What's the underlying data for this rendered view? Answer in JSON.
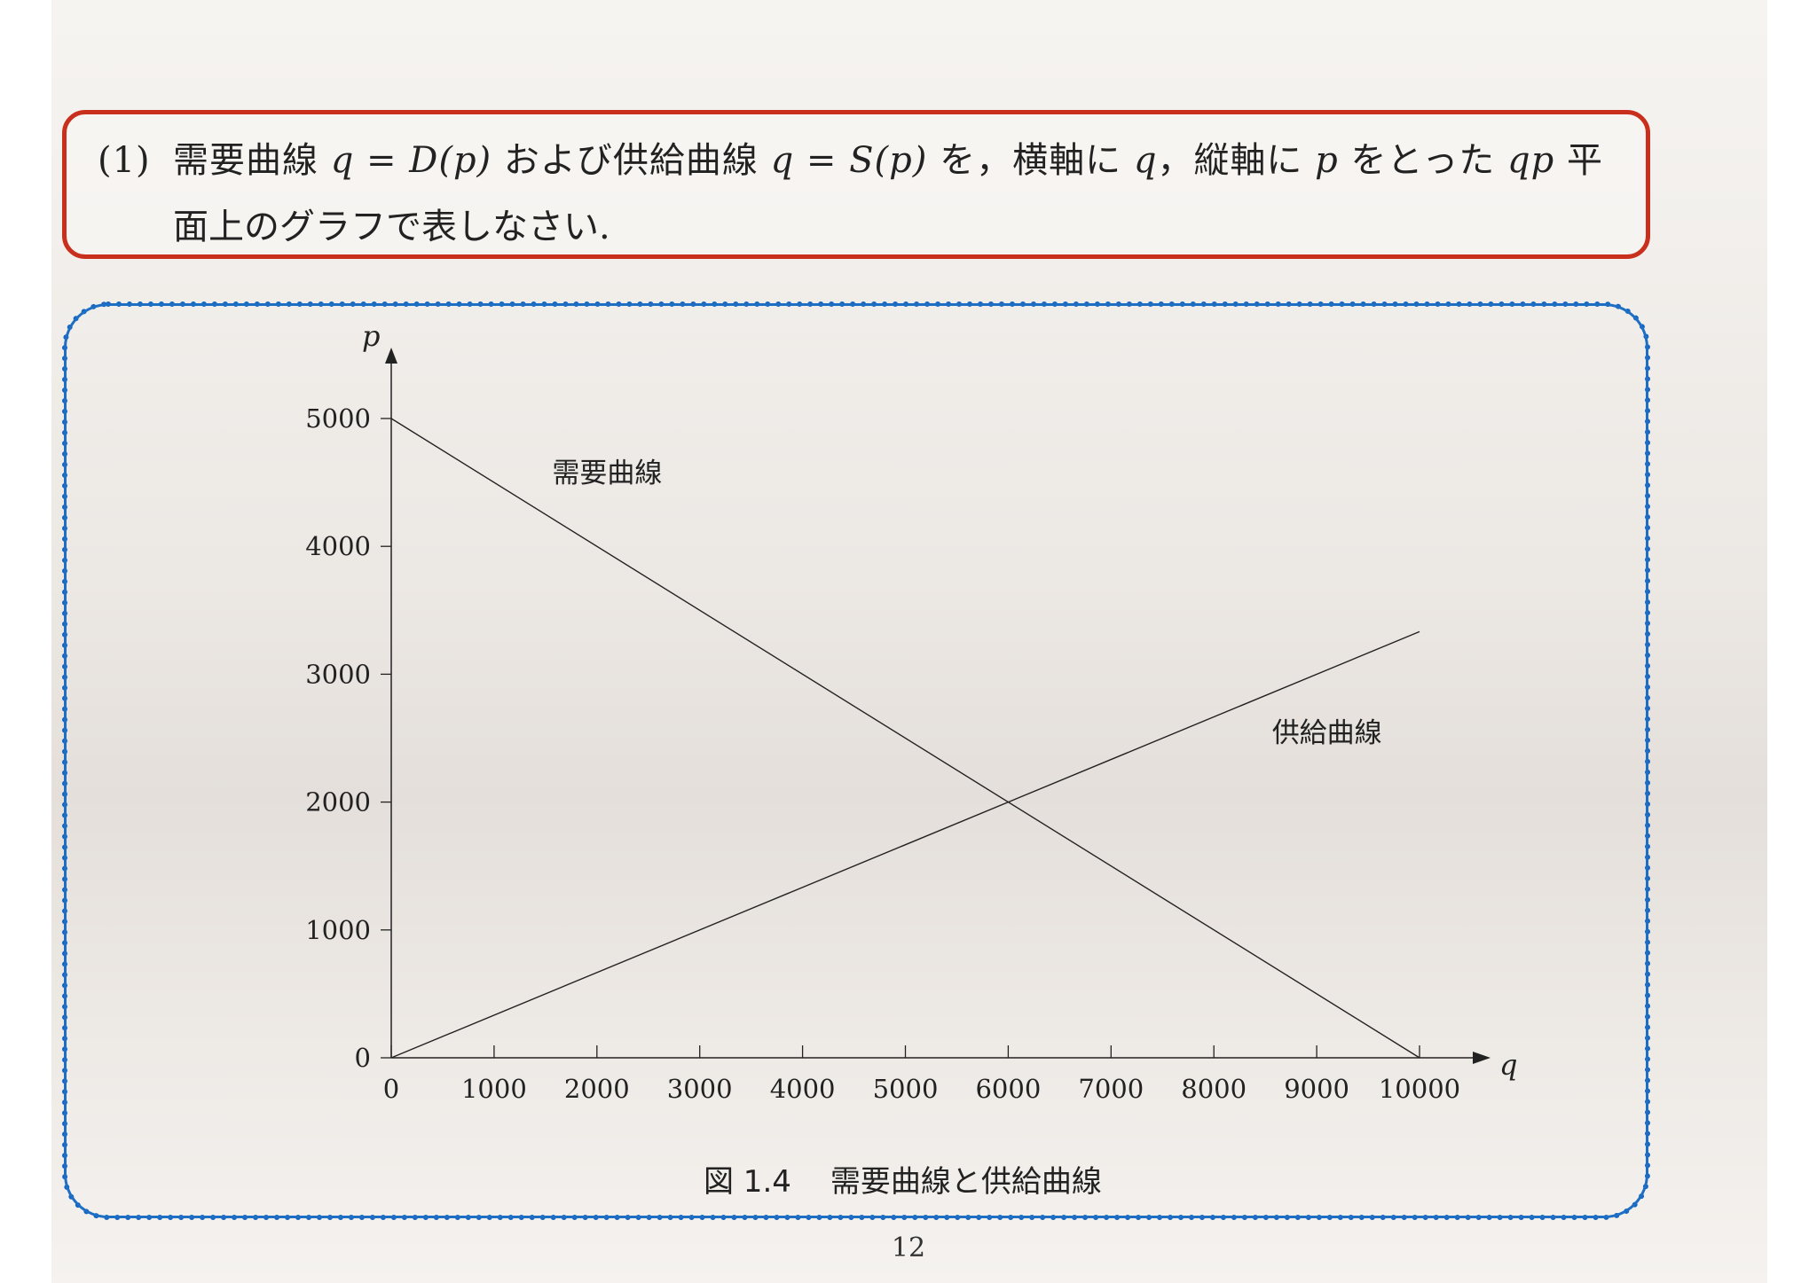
{
  "question": {
    "number": "(1)",
    "line1_text": "需要曲線",
    "line1_math1": "q = D(p)",
    "line1_mid": "および供給曲線",
    "line1_math2": "q = S(p)",
    "line1_mid2": "を，横軸に",
    "line1_math3": "q",
    "line1_mid3": "，縦軸に",
    "line1_math4": "p",
    "line1_mid4": "をとった",
    "line1_math5": "qp",
    "line1_end": "平",
    "line2": "面上のグラフで表しなさい."
  },
  "figure": {
    "number": "図 1.4",
    "title": "需要曲線と供給曲線"
  },
  "page_number": "12",
  "colors": {
    "question_border": "#c8301d",
    "chart_border": "#1565c0",
    "line": "#222222"
  },
  "chart_data": {
    "type": "line",
    "xlabel": "q",
    "ylabel": "p",
    "xlim": [
      0,
      10000
    ],
    "ylim": [
      0,
      5000
    ],
    "x_ticks": [
      "0",
      "1000",
      "2000",
      "3000",
      "4000",
      "5000",
      "6000",
      "7000",
      "8000",
      "9000",
      "10000"
    ],
    "y_ticks": [
      "0",
      "1000",
      "2000",
      "3000",
      "4000",
      "5000"
    ],
    "grid": false,
    "series": [
      {
        "name": "需要曲線",
        "x": [
          0,
          10000
        ],
        "y": [
          5000,
          0
        ],
        "label_at": [
          2100,
          4500
        ]
      },
      {
        "name": "供給曲線",
        "x": [
          0,
          10000
        ],
        "y": [
          0,
          3333
        ],
        "label_at": [
          9100,
          2470
        ]
      }
    ]
  }
}
